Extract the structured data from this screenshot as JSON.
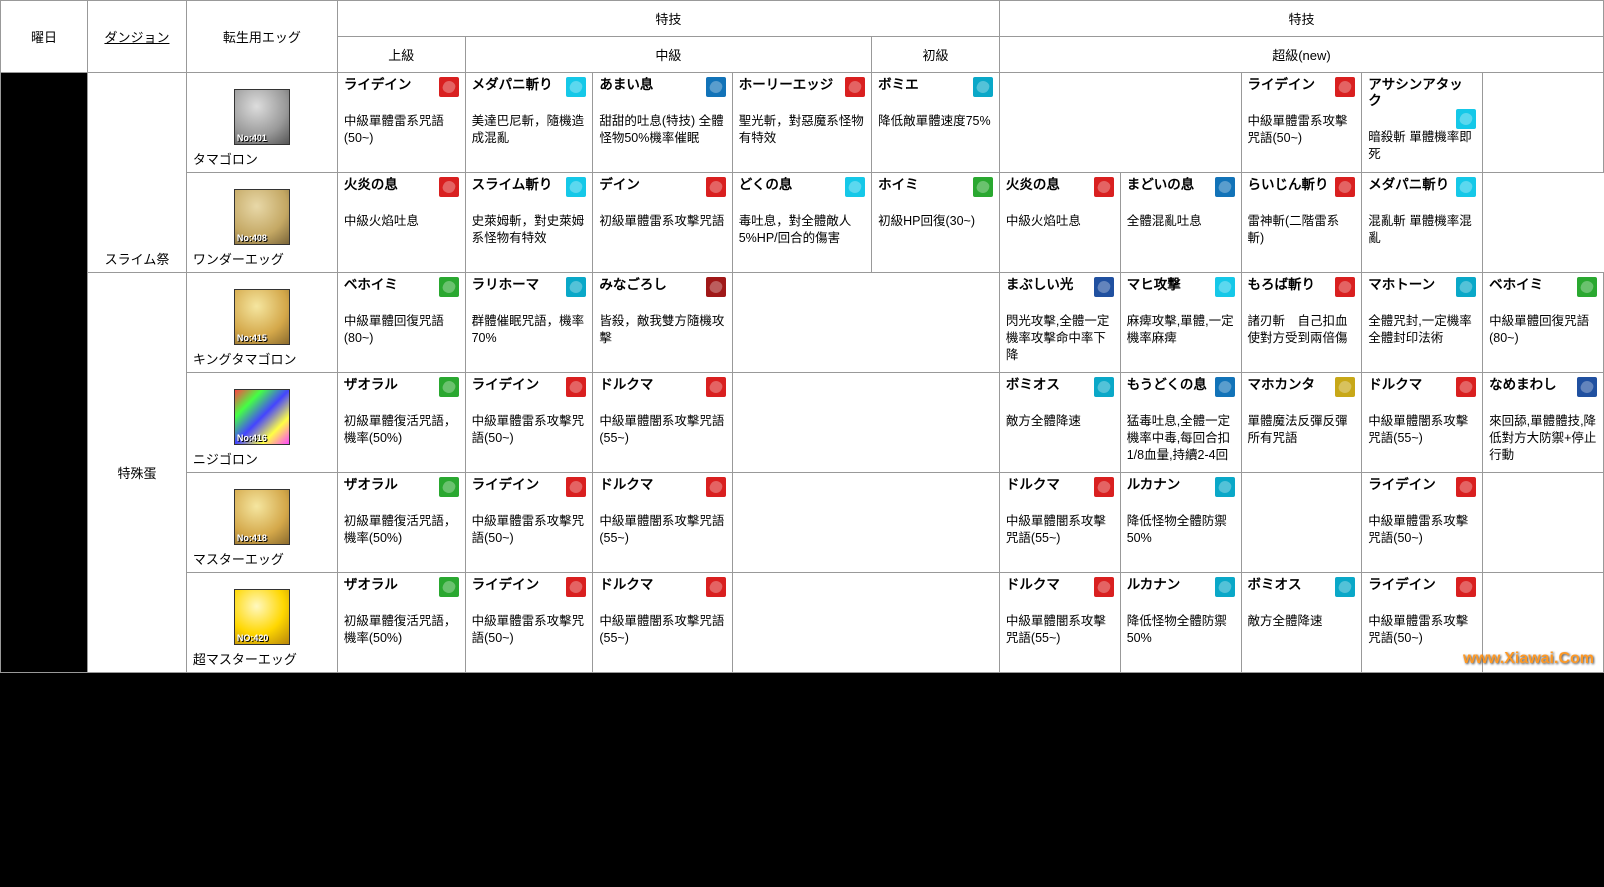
{
  "headers": {
    "day": "曜日",
    "dungeon": "ダンジョン",
    "egg": "転生用エッグ",
    "toku1": "特技",
    "toku2": "特技",
    "upper": "上級",
    "middle": "中級",
    "beginner": "初級",
    "super": "超級(new)"
  },
  "colors": {
    "red": "#d92020",
    "blue": "#1273b8",
    "cyan": "#0aa8c8",
    "teal": "#15c8e8",
    "green": "#2aa830",
    "darkred": "#a01818",
    "yellow": "#c8a818",
    "navy": "#2050a0",
    "purple": "#6832b0",
    "orange": "#e07828"
  },
  "dungeons": {
    "slime": "スライム祭",
    "special": "特殊蛋"
  },
  "eggs": {
    "tamagoron": {
      "name": "タマゴロン",
      "no": "No:401",
      "cls": "egg-p"
    },
    "wonder": {
      "name": "ワンダーエッグ",
      "no": "No:408",
      "cls": "egg-c"
    },
    "king": {
      "name": "キングタマゴロン",
      "no": "No:415",
      "cls": "egg-b"
    },
    "niji": {
      "name": "ニジゴロン",
      "no": "No:416",
      "cls": "egg-r"
    },
    "master": {
      "name": "マスターエッグ",
      "no": "No:418",
      "cls": "egg-b"
    },
    "super": {
      "name": "超マスターエッグ",
      "no": "NO:420",
      "cls": "egg-g"
    }
  },
  "rows": [
    {
      "egg": "tamagoron",
      "cells": [
        {
          "n": "ライデイン",
          "c": "red",
          "d": "中級單體雷系咒語(50~)"
        },
        {
          "n": "メダパニ斬り",
          "c": "teal",
          "d": "美達巴尼斬，隨機造成混亂"
        },
        {
          "n": "あまい息",
          "c": "blue",
          "d": "甜甜的吐息(特技)\n全體怪物50%機率催眠"
        },
        {
          "n": "ホーリーエッジ",
          "c": "red",
          "d": "聖光斬，對惡魔系怪物有特效"
        },
        {
          "n": "ボミエ",
          "c": "cyan",
          "d": "降低敵單體速度75%"
        },
        null,
        null,
        {
          "n": "ライデイン",
          "c": "red",
          "d": "中級單體雷系攻擊咒語(50~)"
        },
        {
          "n": "アサシンアタック",
          "c": "teal",
          "d": "暗殺斬\n單體機率即死"
        }
      ]
    },
    {
      "egg": "wonder",
      "cells": [
        {
          "n": "火炎の息",
          "c": "red",
          "d": "中級火焰吐息"
        },
        {
          "n": "スライム斬り",
          "c": "teal",
          "d": "史萊姆斬，對史萊姆系怪物有特效"
        },
        {
          "n": "デイン",
          "c": "red",
          "d": "初級單體雷系攻擊咒語"
        },
        {
          "n": "どくの息",
          "c": "teal",
          "d": "毒吐息，對全體敵人5%HP/回合的傷害"
        },
        {
          "n": "ホイミ",
          "c": "green",
          "d": "初級HP回復(30~)"
        },
        {
          "n": "火炎の息",
          "c": "red",
          "d": "中級火焰吐息"
        },
        {
          "n": "まどいの息",
          "c": "blue",
          "d": "全體混亂吐息"
        },
        {
          "n": "らいじん斬り",
          "c": "red",
          "d": "雷神斬(二階雷系斬)"
        },
        {
          "n": "メダパニ斬り",
          "c": "teal",
          "d": "混亂斬 單體機率混亂"
        }
      ]
    },
    {
      "egg": "king",
      "cells": [
        {
          "n": "ベホイミ",
          "c": "green",
          "d": "中級單體回復咒語(80~)"
        },
        {
          "n": "ラリホーマ",
          "c": "cyan",
          "d": "群體催眠咒語，機率70%"
        },
        {
          "n": "みなごろし",
          "c": "darkred",
          "d": "皆殺，敵我雙方隨機攻擊"
        },
        null,
        {
          "n": "まぶしい光",
          "c": "navy",
          "d": "閃光攻擊,全體一定機率攻擊命中率下降"
        },
        {
          "n": "マヒ攻撃",
          "c": "teal",
          "d": "麻痺攻擊,單體,一定機率麻痺"
        },
        {
          "n": "もろば斬り",
          "c": "red",
          "d": "諸刃斬　自己扣血使對方受到兩倍傷"
        },
        {
          "n": "マホトーン",
          "c": "cyan",
          "d": "全體咒封,一定機率全體封印法術"
        },
        {
          "n": "ベホイミ",
          "c": "green",
          "d": "中級單體回復咒語(80~)"
        }
      ]
    },
    {
      "egg": "niji",
      "cells": [
        {
          "n": "ザオラル",
          "c": "green",
          "d": "初級單體復活咒語，機率(50%)"
        },
        {
          "n": "ライデイン",
          "c": "red",
          "d": "中級單體雷系攻擊咒語(50~)"
        },
        {
          "n": "ドルクマ",
          "c": "red",
          "d": "中級單體闇系攻擊咒語(55~)"
        },
        null,
        {
          "n": "ボミオス",
          "c": "cyan",
          "d": "敵方全體降速"
        },
        {
          "n": "もうどくの息",
          "c": "blue",
          "d": "猛毒吐息,全體一定機率中毒,每回合扣1/8血量,持續2-4回"
        },
        {
          "n": "マホカンタ",
          "c": "yellow",
          "d": "單體魔法反彈反彈所有咒語"
        },
        {
          "n": "ドルクマ",
          "c": "red",
          "d": "中級單體闇系攻擊咒語(55~)"
        },
        {
          "n": "なめまわし",
          "c": "navy",
          "d": "來回舔,單體體技,降低對方大防禦+停止行動"
        }
      ]
    },
    {
      "egg": "master",
      "cells": [
        {
          "n": "ザオラル",
          "c": "green",
          "d": "初級單體復活咒語，機率(50%)"
        },
        {
          "n": "ライデイン",
          "c": "red",
          "d": "中級單體雷系攻擊咒語(50~)"
        },
        {
          "n": "ドルクマ",
          "c": "red",
          "d": "中級單體闇系攻擊咒語(55~)"
        },
        null,
        {
          "n": "ドルクマ",
          "c": "red",
          "d": "中級單體闇系攻擊咒語(55~)"
        },
        {
          "n": "ルカナン",
          "c": "cyan",
          "d": "降低怪物全體防禦50%"
        },
        null,
        {
          "n": "ライデイン",
          "c": "red",
          "d": "中級單體雷系攻擊咒語(50~)"
        },
        null
      ]
    },
    {
      "egg": "super",
      "cells": [
        {
          "n": "ザオラル",
          "c": "green",
          "d": "初級單體復活咒語，機率(50%)"
        },
        {
          "n": "ライデイン",
          "c": "red",
          "d": "中級單體雷系攻擊咒語(50~)"
        },
        {
          "n": "ドルクマ",
          "c": "red",
          "d": "中級單體闇系攻擊咒語(55~)"
        },
        null,
        {
          "n": "ドルクマ",
          "c": "red",
          "d": "中級單體闇系攻擊咒語(55~)"
        },
        {
          "n": "ルカナン",
          "c": "cyan",
          "d": "降低怪物全體防禦50%"
        },
        {
          "n": "ボミオス",
          "c": "cyan",
          "d": "敵方全體降速"
        },
        {
          "n": "ライデイン",
          "c": "red",
          "d": "中級單體雷系攻擊咒語(50~)"
        },
        null
      ]
    }
  ],
  "watermark": "www.Xiawai.Com"
}
